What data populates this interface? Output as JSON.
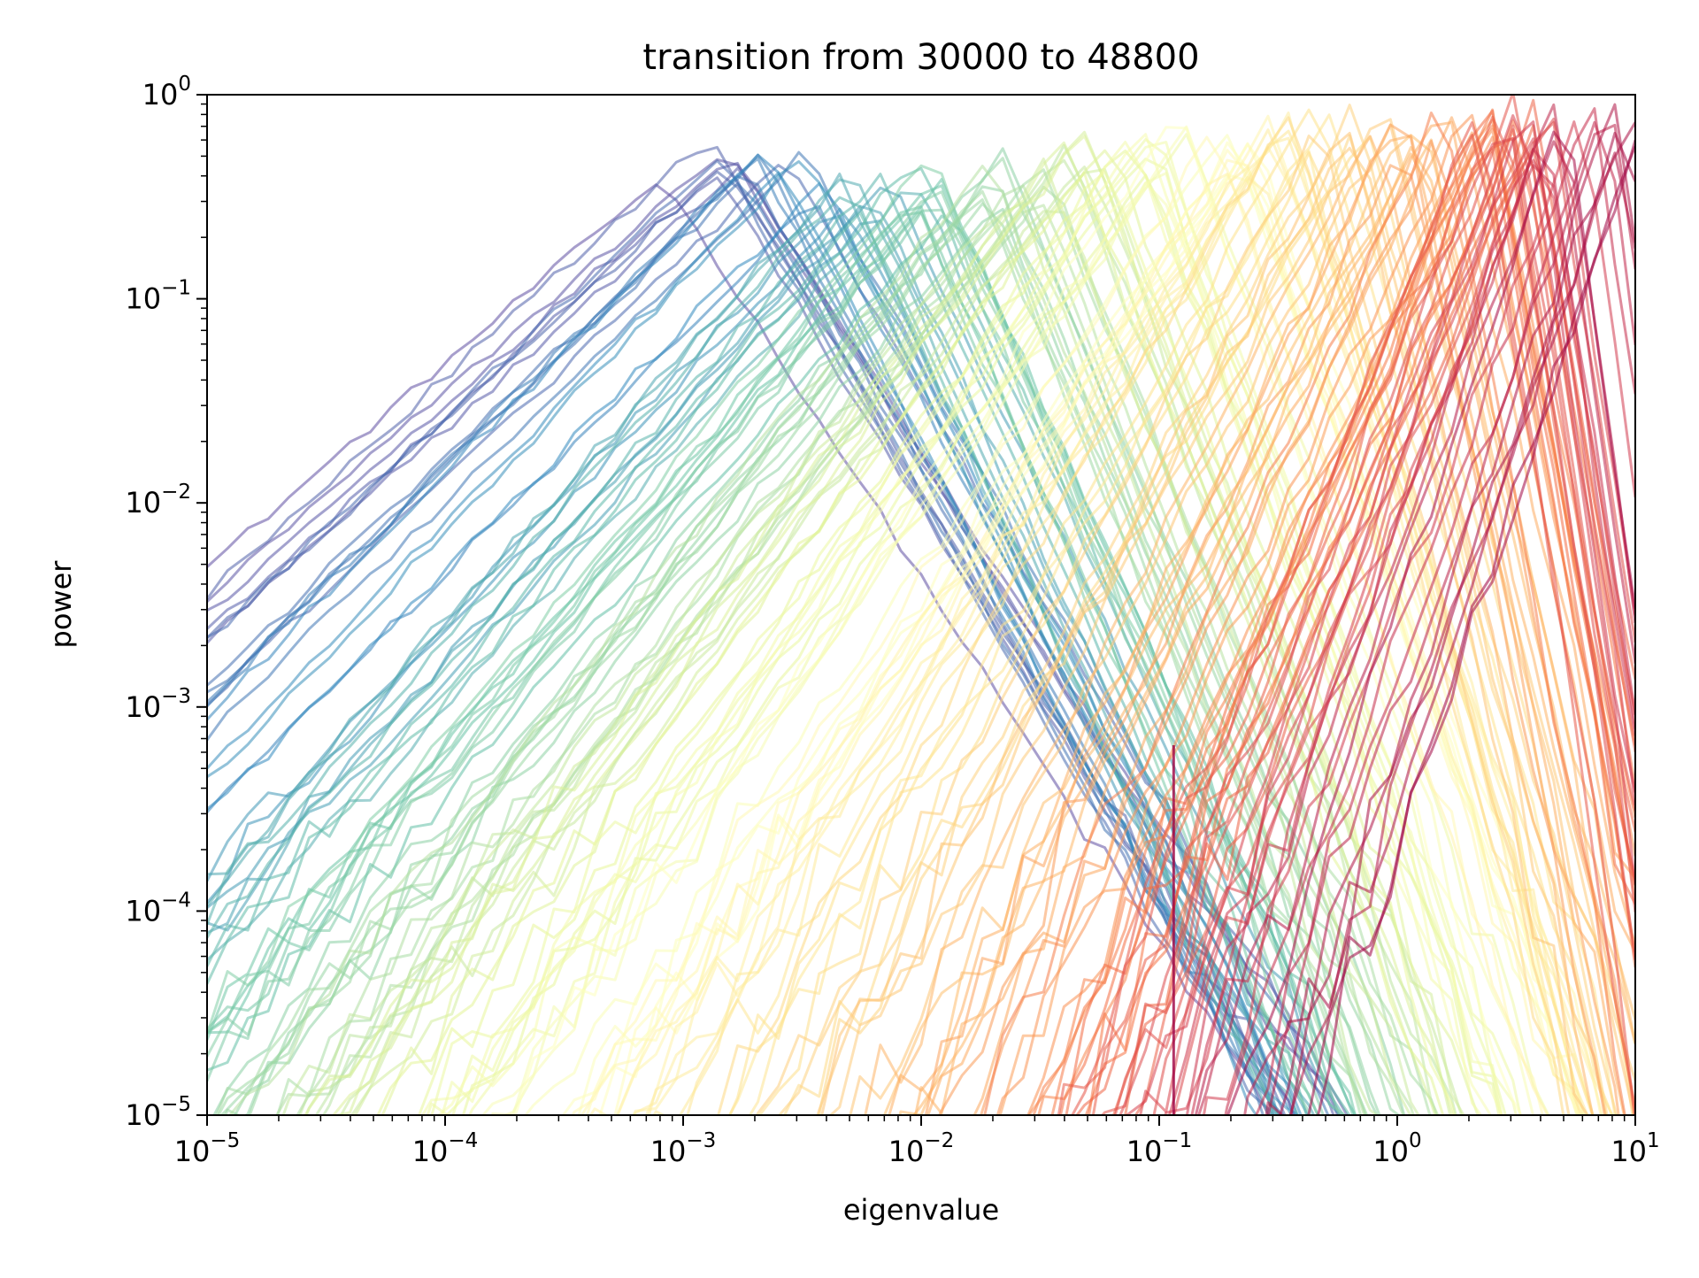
{
  "chart_data": {
    "type": "line",
    "title": "transition from 30000 to 48800",
    "xlabel": "eigenvalue",
    "ylabel": "power",
    "xscale": "log",
    "yscale": "log",
    "xlim": [
      1e-05,
      10
    ],
    "ylim": [
      1e-05,
      1
    ],
    "x_ticks": [
      {
        "value": 1e-05,
        "base": "10",
        "exp": "−5"
      },
      {
        "value": 0.0001,
        "base": "10",
        "exp": "−4"
      },
      {
        "value": 0.001,
        "base": "10",
        "exp": "−3"
      },
      {
        "value": 0.01,
        "base": "10",
        "exp": "−2"
      },
      {
        "value": 0.1,
        "base": "10",
        "exp": "−1"
      },
      {
        "value": 1,
        "base": "10",
        "exp": "0"
      },
      {
        "value": 10,
        "base": "10",
        "exp": "1"
      }
    ],
    "y_ticks": [
      {
        "value": 1e-05,
        "base": "10",
        "exp": "−5"
      },
      {
        "value": 0.0001,
        "base": "10",
        "exp": "−4"
      },
      {
        "value": 0.001,
        "base": "10",
        "exp": "−3"
      },
      {
        "value": 0.01,
        "base": "10",
        "exp": "−2"
      },
      {
        "value": 0.1,
        "base": "10",
        "exp": "−1"
      },
      {
        "value": 1,
        "base": "10",
        "exp": "0"
      }
    ],
    "grid": false,
    "legend": "none",
    "colormap": "Spectral_r",
    "colormap_stops": [
      "#5e4fa2",
      "#3288bd",
      "#66c2a5",
      "#abdda4",
      "#e6f598",
      "#ffffbf",
      "#fee08b",
      "#fdae61",
      "#f46d43",
      "#d53e4f",
      "#9e0142"
    ],
    "line_opacity": 0.55,
    "series_count": 160,
    "series_description": "One spectrum curve per training step from 30000 to 48800; color runs from purple (early) to dark red (late). Each curve rises roughly linearly in log-log space from about 1e-5 to a peak, then falls; the peak moves from about 0.001 to about 8 eigenvalue.",
    "series_templates": [
      {
        "t": 0.0,
        "peak_x": 0.0012,
        "peak_y": 0.55,
        "rise_slope": 1.0,
        "fall_slope": 1.8
      },
      {
        "t": 0.15,
        "peak_x": 0.006,
        "peak_y": 0.35,
        "rise_slope": 1.3,
        "fall_slope": 2.5
      },
      {
        "t": 0.35,
        "peak_x": 0.04,
        "peak_y": 0.45,
        "rise_slope": 1.5,
        "fall_slope": 3.0
      },
      {
        "t": 0.55,
        "peak_x": 0.3,
        "peak_y": 0.65,
        "rise_slope": 1.8,
        "fall_slope": 3.5
      },
      {
        "t": 0.75,
        "peak_x": 1.8,
        "peak_y": 0.85,
        "rise_slope": 2.5,
        "fall_slope": 6.0
      },
      {
        "t": 1.0,
        "peak_x": 8.0,
        "peak_y": 0.9,
        "rise_slope": 3.5,
        "fall_slope": 9.0
      }
    ],
    "annotation_spike": {
      "x": 0.115,
      "y": 0.00065
    }
  }
}
